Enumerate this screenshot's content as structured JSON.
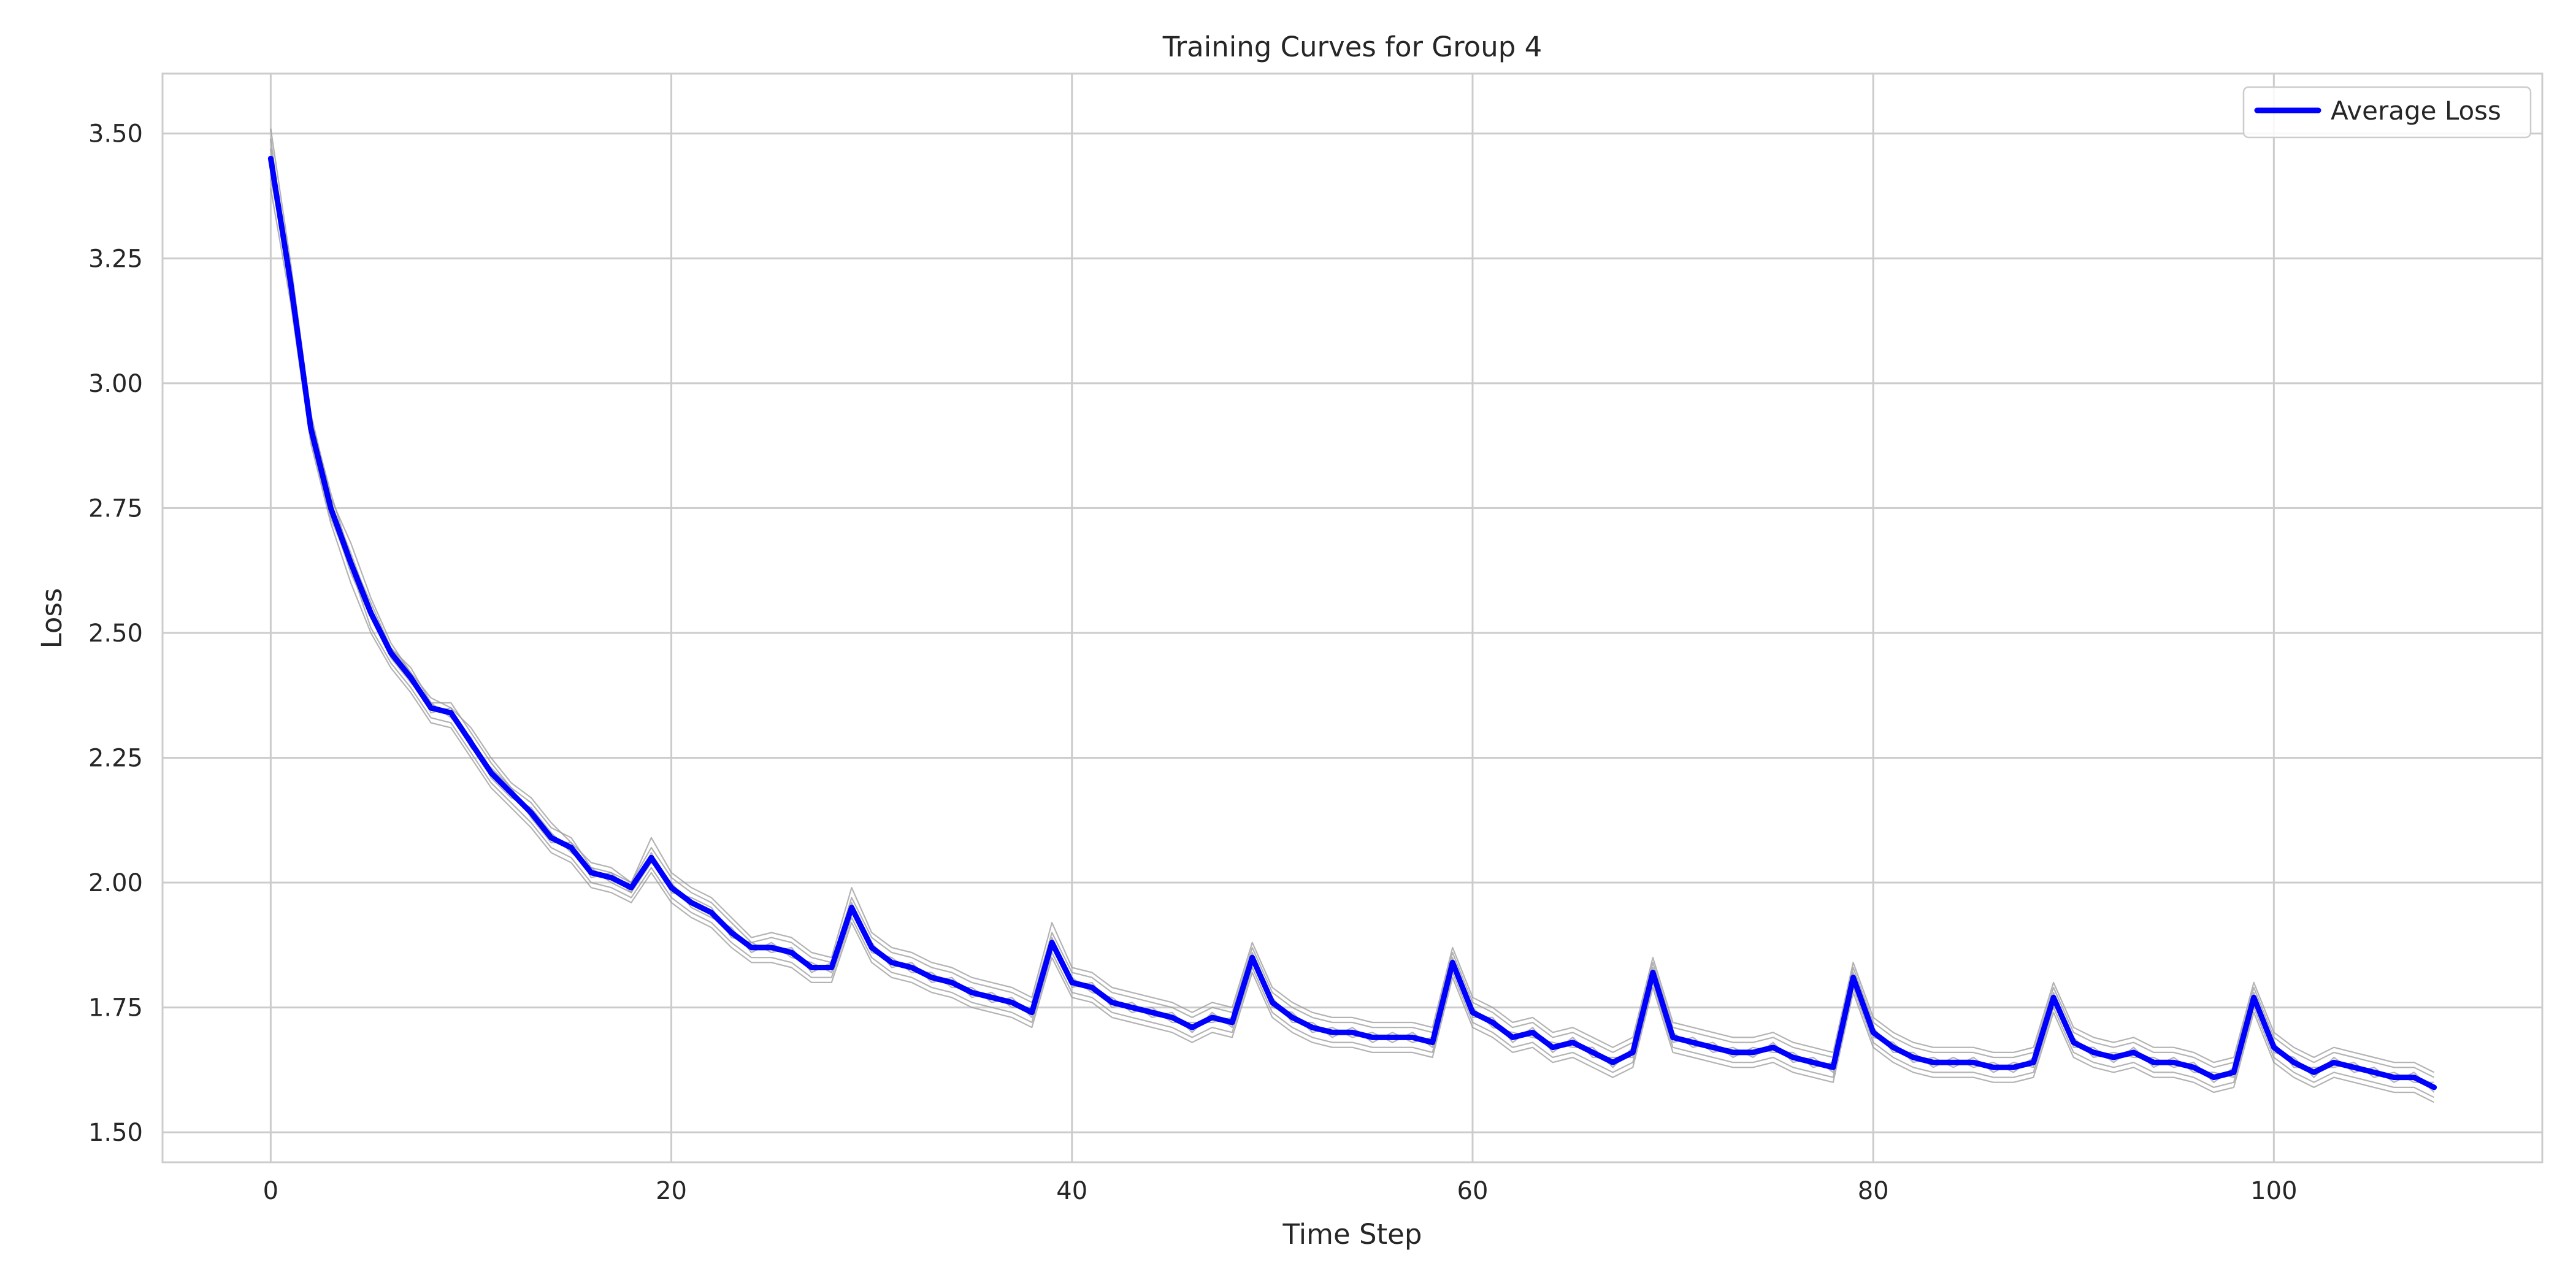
{
  "chart_data": {
    "type": "line",
    "title": "Training Curves for Group 4",
    "xlabel": "Time Step",
    "ylabel": "Loss",
    "xlim": [
      -5.4,
      113.4
    ],
    "ylim": [
      1.44,
      3.62
    ],
    "xticks": [
      0,
      20,
      40,
      60,
      80,
      100
    ],
    "yticks": [
      1.5,
      1.75,
      2.0,
      2.25,
      2.5,
      2.75,
      3.0,
      3.25,
      3.5
    ],
    "ytick_labels": [
      "1.50",
      "1.75",
      "2.00",
      "2.25",
      "2.50",
      "2.75",
      "3.00",
      "3.25",
      "3.50"
    ],
    "grid": true,
    "legend": {
      "position": "top-right",
      "entries": [
        "Average Loss"
      ]
    },
    "colors": {
      "average": "#0000ff",
      "runs": "#999999",
      "grid": "#cccccc",
      "text": "#262626"
    },
    "x_start": 0,
    "x_step": 1,
    "series": [
      {
        "name": "Average Loss",
        "values": [
          3.45,
          3.2,
          2.91,
          2.75,
          2.64,
          2.54,
          2.46,
          2.41,
          2.35,
          2.34,
          2.28,
          2.22,
          2.18,
          2.14,
          2.09,
          2.07,
          2.02,
          2.01,
          1.99,
          2.05,
          1.99,
          1.96,
          1.94,
          1.9,
          1.87,
          1.87,
          1.86,
          1.83,
          1.83,
          1.95,
          1.87,
          1.84,
          1.83,
          1.81,
          1.8,
          1.78,
          1.77,
          1.76,
          1.74,
          1.88,
          1.8,
          1.79,
          1.76,
          1.75,
          1.74,
          1.73,
          1.71,
          1.73,
          1.72,
          1.85,
          1.76,
          1.73,
          1.71,
          1.7,
          1.7,
          1.69,
          1.69,
          1.69,
          1.68,
          1.84,
          1.74,
          1.72,
          1.69,
          1.7,
          1.67,
          1.68,
          1.66,
          1.64,
          1.66,
          1.82,
          1.69,
          1.68,
          1.67,
          1.66,
          1.66,
          1.67,
          1.65,
          1.64,
          1.63,
          1.81,
          1.7,
          1.67,
          1.65,
          1.64,
          1.64,
          1.64,
          1.63,
          1.63,
          1.64,
          1.77,
          1.68,
          1.66,
          1.65,
          1.66,
          1.64,
          1.64,
          1.63,
          1.61,
          1.62,
          1.77,
          1.67,
          1.64,
          1.62,
          1.64,
          1.63,
          1.62,
          1.61,
          1.61,
          1.59
        ]
      },
      {
        "values": [
          3.51,
          3.24,
          2.94,
          2.77,
          2.68,
          2.57,
          2.48,
          2.42,
          2.37,
          2.35,
          2.31,
          2.25,
          2.2,
          2.17,
          2.12,
          2.08,
          2.04,
          2.03,
          2.0,
          2.09,
          2.02,
          1.99,
          1.97,
          1.93,
          1.89,
          1.9,
          1.89,
          1.86,
          1.85,
          1.99,
          1.9,
          1.87,
          1.86,
          1.84,
          1.83,
          1.81,
          1.8,
          1.79,
          1.77,
          1.92,
          1.83,
          1.82,
          1.79,
          1.78,
          1.77,
          1.76,
          1.74,
          1.76,
          1.75,
          1.88,
          1.79,
          1.76,
          1.74,
          1.73,
          1.73,
          1.72,
          1.72,
          1.72,
          1.71,
          1.87,
          1.77,
          1.75,
          1.72,
          1.73,
          1.7,
          1.71,
          1.69,
          1.67,
          1.69,
          1.85,
          1.72,
          1.71,
          1.7,
          1.69,
          1.69,
          1.7,
          1.68,
          1.67,
          1.66,
          1.84,
          1.73,
          1.7,
          1.68,
          1.67,
          1.67,
          1.67,
          1.66,
          1.66,
          1.67,
          1.8,
          1.71,
          1.69,
          1.68,
          1.69,
          1.67,
          1.67,
          1.66,
          1.64,
          1.65,
          1.8,
          1.7,
          1.67,
          1.65,
          1.67,
          1.66,
          1.65,
          1.64,
          1.64,
          1.62
        ]
      },
      {
        "values": [
          3.39,
          3.16,
          2.88,
          2.72,
          2.6,
          2.5,
          2.43,
          2.38,
          2.32,
          2.31,
          2.25,
          2.19,
          2.15,
          2.11,
          2.06,
          2.04,
          1.99,
          1.98,
          1.96,
          2.02,
          1.96,
          1.93,
          1.91,
          1.87,
          1.84,
          1.84,
          1.83,
          1.8,
          1.8,
          1.92,
          1.84,
          1.81,
          1.8,
          1.78,
          1.77,
          1.75,
          1.74,
          1.73,
          1.71,
          1.85,
          1.77,
          1.76,
          1.73,
          1.72,
          1.71,
          1.7,
          1.68,
          1.7,
          1.69,
          1.82,
          1.73,
          1.7,
          1.68,
          1.67,
          1.67,
          1.66,
          1.66,
          1.66,
          1.65,
          1.81,
          1.71,
          1.69,
          1.66,
          1.67,
          1.64,
          1.65,
          1.63,
          1.61,
          1.63,
          1.79,
          1.66,
          1.65,
          1.64,
          1.63,
          1.63,
          1.64,
          1.62,
          1.61,
          1.6,
          1.78,
          1.67,
          1.64,
          1.62,
          1.61,
          1.61,
          1.61,
          1.6,
          1.6,
          1.61,
          1.74,
          1.65,
          1.63,
          1.62,
          1.63,
          1.61,
          1.61,
          1.6,
          1.58,
          1.59,
          1.74,
          1.64,
          1.61,
          1.59,
          1.61,
          1.6,
          1.59,
          1.58,
          1.58,
          1.56
        ]
      },
      {
        "values": [
          3.47,
          3.22,
          2.9,
          2.76,
          2.66,
          2.55,
          2.45,
          2.4,
          2.36,
          2.33,
          2.29,
          2.21,
          2.17,
          2.15,
          2.1,
          2.06,
          2.03,
          2.0,
          1.98,
          2.06,
          1.98,
          1.97,
          1.95,
          1.89,
          1.88,
          1.86,
          1.87,
          1.82,
          1.84,
          1.96,
          1.86,
          1.85,
          1.82,
          1.82,
          1.79,
          1.79,
          1.76,
          1.77,
          1.73,
          1.89,
          1.79,
          1.8,
          1.75,
          1.76,
          1.73,
          1.74,
          1.7,
          1.74,
          1.71,
          1.86,
          1.75,
          1.74,
          1.7,
          1.71,
          1.69,
          1.7,
          1.68,
          1.7,
          1.67,
          1.85,
          1.73,
          1.73,
          1.68,
          1.71,
          1.66,
          1.69,
          1.65,
          1.65,
          1.65,
          1.83,
          1.68,
          1.69,
          1.66,
          1.67,
          1.65,
          1.68,
          1.64,
          1.65,
          1.62,
          1.82,
          1.69,
          1.68,
          1.64,
          1.65,
          1.63,
          1.65,
          1.62,
          1.64,
          1.63,
          1.78,
          1.67,
          1.67,
          1.64,
          1.67,
          1.63,
          1.65,
          1.62,
          1.62,
          1.61,
          1.78,
          1.66,
          1.65,
          1.61,
          1.65,
          1.62,
          1.63,
          1.6,
          1.62,
          1.58
        ]
      },
      {
        "values": [
          3.43,
          3.18,
          2.92,
          2.74,
          2.62,
          2.53,
          2.47,
          2.42,
          2.34,
          2.35,
          2.27,
          2.23,
          2.19,
          2.13,
          2.08,
          2.08,
          2.01,
          2.02,
          1.98,
          2.04,
          2.0,
          1.95,
          1.93,
          1.91,
          1.86,
          1.88,
          1.85,
          1.84,
          1.82,
          1.94,
          1.88,
          1.83,
          1.84,
          1.8,
          1.81,
          1.77,
          1.78,
          1.75,
          1.75,
          1.87,
          1.81,
          1.78,
          1.77,
          1.74,
          1.75,
          1.72,
          1.72,
          1.72,
          1.73,
          1.84,
          1.77,
          1.72,
          1.72,
          1.69,
          1.71,
          1.68,
          1.7,
          1.68,
          1.69,
          1.83,
          1.75,
          1.71,
          1.7,
          1.69,
          1.68,
          1.67,
          1.67,
          1.63,
          1.67,
          1.81,
          1.7,
          1.67,
          1.68,
          1.65,
          1.67,
          1.66,
          1.66,
          1.63,
          1.64,
          1.8,
          1.71,
          1.66,
          1.66,
          1.63,
          1.65,
          1.63,
          1.64,
          1.62,
          1.65,
          1.76,
          1.69,
          1.65,
          1.66,
          1.65,
          1.65,
          1.63,
          1.64,
          1.6,
          1.63,
          1.76,
          1.68,
          1.63,
          1.63,
          1.63,
          1.64,
          1.61,
          1.62,
          1.6,
          1.6
        ]
      },
      {
        "values": [
          3.49,
          3.19,
          2.89,
          2.73,
          2.63,
          2.51,
          2.44,
          2.39,
          2.33,
          2.32,
          2.26,
          2.2,
          2.16,
          2.12,
          2.07,
          2.05,
          2.0,
          1.99,
          1.97,
          2.03,
          1.97,
          1.94,
          1.92,
          1.88,
          1.85,
          1.85,
          1.84,
          1.81,
          1.81,
          1.93,
          1.85,
          1.82,
          1.81,
          1.79,
          1.78,
          1.76,
          1.75,
          1.74,
          1.72,
          1.86,
          1.78,
          1.77,
          1.74,
          1.73,
          1.72,
          1.71,
          1.69,
          1.71,
          1.7,
          1.83,
          1.74,
          1.71,
          1.69,
          1.68,
          1.68,
          1.67,
          1.67,
          1.67,
          1.66,
          1.82,
          1.72,
          1.7,
          1.67,
          1.68,
          1.65,
          1.66,
          1.64,
          1.62,
          1.64,
          1.8,
          1.67,
          1.66,
          1.65,
          1.64,
          1.64,
          1.65,
          1.63,
          1.62,
          1.61,
          1.79,
          1.68,
          1.65,
          1.63,
          1.62,
          1.62,
          1.62,
          1.61,
          1.61,
          1.62,
          1.75,
          1.66,
          1.64,
          1.63,
          1.64,
          1.62,
          1.62,
          1.61,
          1.59,
          1.6,
          1.75,
          1.65,
          1.62,
          1.6,
          1.62,
          1.61,
          1.6,
          1.59,
          1.59,
          1.57
        ]
      },
      {
        "values": [
          3.41,
          3.21,
          2.93,
          2.78,
          2.65,
          2.56,
          2.47,
          2.43,
          2.36,
          2.36,
          2.3,
          2.24,
          2.19,
          2.16,
          2.11,
          2.09,
          2.03,
          2.02,
          2.0,
          2.07,
          2.01,
          1.98,
          1.96,
          1.92,
          1.88,
          1.89,
          1.88,
          1.85,
          1.84,
          1.97,
          1.89,
          1.86,
          1.85,
          1.83,
          1.82,
          1.8,
          1.79,
          1.78,
          1.76,
          1.9,
          1.82,
          1.81,
          1.78,
          1.77,
          1.76,
          1.75,
          1.73,
          1.75,
          1.74,
          1.87,
          1.78,
          1.75,
          1.73,
          1.72,
          1.72,
          1.71,
          1.71,
          1.71,
          1.7,
          1.86,
          1.76,
          1.74,
          1.71,
          1.72,
          1.69,
          1.7,
          1.68,
          1.66,
          1.68,
          1.84,
          1.71,
          1.7,
          1.69,
          1.68,
          1.68,
          1.69,
          1.67,
          1.66,
          1.65,
          1.83,
          1.72,
          1.69,
          1.67,
          1.66,
          1.66,
          1.66,
          1.65,
          1.65,
          1.66,
          1.79,
          1.7,
          1.68,
          1.67,
          1.68,
          1.66,
          1.66,
          1.65,
          1.63,
          1.64,
          1.79,
          1.69,
          1.66,
          1.64,
          1.66,
          1.65,
          1.64,
          1.63,
          1.63,
          1.61
        ]
      }
    ]
  }
}
